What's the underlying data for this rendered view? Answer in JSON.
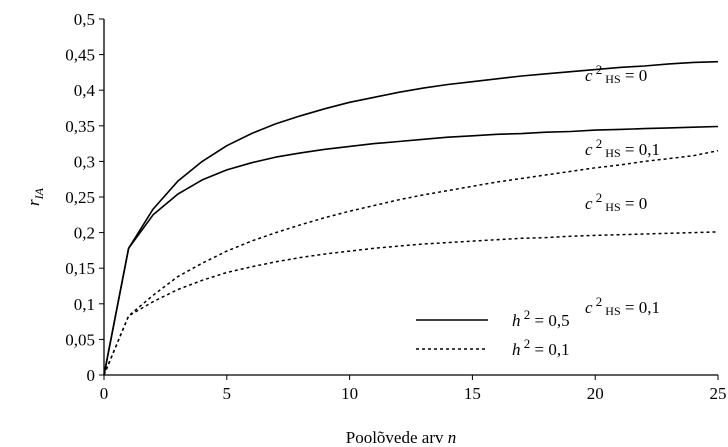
{
  "chart_data": {
    "type": "line",
    "xlabel_text": "Poolõvede arv ",
    "xlabel_var": "n",
    "ylabel_var": "r",
    "ylabel_sub": "IA",
    "xlim": [
      0,
      25
    ],
    "ylim": [
      0,
      0.5
    ],
    "x_ticks": [
      0,
      5,
      10,
      15,
      20,
      25
    ],
    "x_tick_labels": [
      "0",
      "5",
      "10",
      "15",
      "20",
      "25"
    ],
    "y_ticks": [
      0,
      0.05,
      0.1,
      0.15,
      0.2,
      0.25,
      0.3,
      0.35,
      0.4,
      0.45,
      0.5
    ],
    "y_tick_labels": [
      "0",
      "0,05",
      "0,1",
      "0,15",
      "0,2",
      "0,25",
      "0,3",
      "0,35",
      "0,4",
      "0,45",
      "0,5"
    ],
    "grid": false,
    "x": [
      0,
      1,
      2,
      3,
      4,
      5,
      6,
      7,
      8,
      9,
      10,
      11,
      12,
      13,
      14,
      15,
      16,
      17,
      18,
      19,
      20,
      21,
      22,
      23,
      24,
      25
    ],
    "series": [
      {
        "style": "solid",
        "label_prefix": "c",
        "label_sup": "2",
        "label_sub": "HS",
        "label_value": " = 0",
        "values": [
          0,
          0.178,
          0.233,
          0.272,
          0.3,
          0.322,
          0.339,
          0.353,
          0.364,
          0.374,
          0.383,
          0.39,
          0.397,
          0.403,
          0.408,
          0.412,
          0.416,
          0.42,
          0.423,
          0.426,
          0.429,
          0.432,
          0.434,
          0.437,
          0.439,
          0.44
        ]
      },
      {
        "style": "solid",
        "label_prefix": "c",
        "label_sup": "2",
        "label_sub": "HS",
        "label_value": " = 0,1",
        "values": [
          0,
          0.178,
          0.225,
          0.254,
          0.274,
          0.288,
          0.298,
          0.306,
          0.312,
          0.317,
          0.321,
          0.325,
          0.328,
          0.331,
          0.334,
          0.336,
          0.338,
          0.339,
          0.341,
          0.342,
          0.344,
          0.345,
          0.346,
          0.347,
          0.348,
          0.349
        ]
      },
      {
        "style": "dotted",
        "label_prefix": "c",
        "label_sup": "2",
        "label_sub": "HS",
        "label_value": " = 0",
        "values": [
          0,
          0.083,
          0.112,
          0.138,
          0.157,
          0.174,
          0.188,
          0.2,
          0.211,
          0.221,
          0.23,
          0.238,
          0.246,
          0.253,
          0.259,
          0.265,
          0.271,
          0.276,
          0.281,
          0.286,
          0.291,
          0.295,
          0.3,
          0.304,
          0.308,
          0.315
        ]
      },
      {
        "style": "dotted",
        "label_prefix": "c",
        "label_sup": "2",
        "label_sub": "HS",
        "label_value": " = 0,1",
        "values": [
          0,
          0.083,
          0.103,
          0.12,
          0.133,
          0.144,
          0.152,
          0.159,
          0.165,
          0.17,
          0.174,
          0.178,
          0.181,
          0.184,
          0.186,
          0.188,
          0.19,
          0.192,
          0.193,
          0.195,
          0.196,
          0.197,
          0.198,
          0.199,
          0.2,
          0.201
        ]
      }
    ],
    "legend": [
      {
        "style": "solid",
        "prefix": "h",
        "sup": "2",
        "value": " = 0,5"
      },
      {
        "style": "dotted",
        "prefix": "h",
        "sup": "2",
        "value": " = 0,1"
      }
    ],
    "legend_position": "bottom-right"
  }
}
